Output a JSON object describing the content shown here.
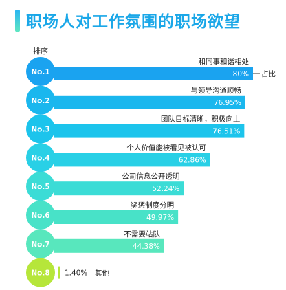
{
  "title": "职场人对工作氛围的职场欲望",
  "rank_header": "排序",
  "legend_label": "占比",
  "chart_data": {
    "type": "bar",
    "orientation": "horizontal",
    "title": "职场人对工作氛围的职场欲望",
    "xlim": [
      0,
      100
    ],
    "ranks": [
      "No.1",
      "No.2",
      "No.3",
      "No.4",
      "No.5",
      "No.6",
      "No.7",
      "No.8"
    ],
    "categories": [
      "和同事和谐相处",
      "与领导沟通顺畅",
      "团队目标清晰，积极向上",
      "个人价值能被看见被认可",
      "公司信息公开透明",
      "奖惩制度分明",
      "不需要站队",
      "其他"
    ],
    "values": [
      80,
      76.95,
      76.51,
      62.86,
      52.24,
      49.97,
      44.38,
      1.4
    ],
    "value_labels": [
      "80%",
      "76.95%",
      "76.51%",
      "62.86%",
      "52.24%",
      "49.97%",
      "44.38%",
      "1.40%"
    ],
    "colors": {
      "bar_gradient": [
        "#1aa3f0",
        "#1ab7ee",
        "#1cc4ec",
        "#29d0e6",
        "#3bdcd6",
        "#48e2c8",
        "#58e7bd",
        "#b6e63a"
      ],
      "title": "#1aa7e8"
    }
  }
}
